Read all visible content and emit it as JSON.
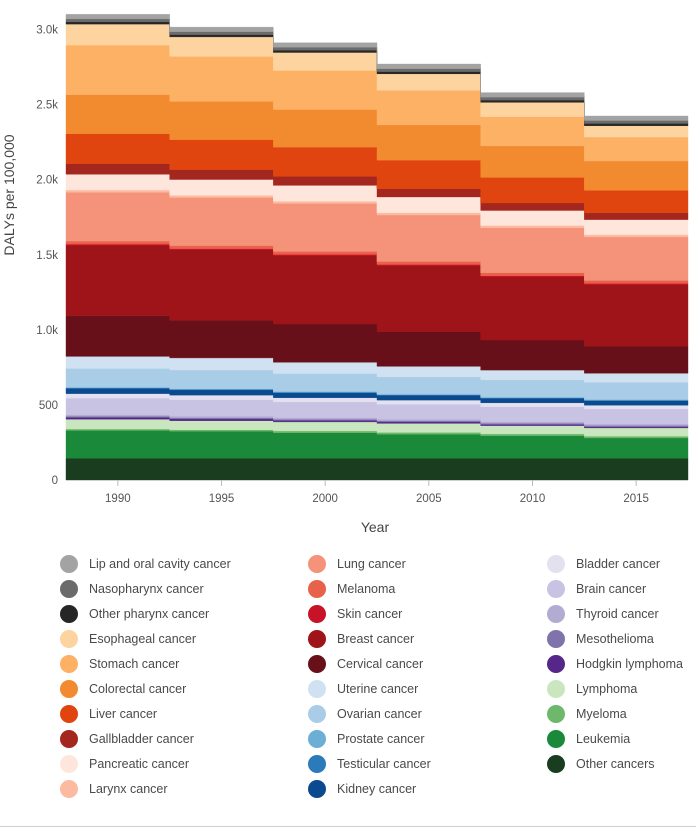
{
  "chart_data": {
    "type": "area",
    "xlabel": "Year",
    "ylabel": "DALYs per 100,000",
    "ylim": [
      0,
      3150
    ],
    "y_ticks": [
      {
        "value": 0,
        "label": "0"
      },
      {
        "value": 500,
        "label": "500"
      },
      {
        "value": 1000,
        "label": "1.0k"
      },
      {
        "value": 1500,
        "label": "1.5k"
      },
      {
        "value": 2000,
        "label": "2.0k"
      },
      {
        "value": 2500,
        "label": "2.5k"
      },
      {
        "value": 3000,
        "label": "3.0k"
      }
    ],
    "categories": [
      "1990",
      "1995",
      "2000",
      "2005",
      "2010",
      "2015"
    ],
    "grid": false,
    "legend_position": "bottom",
    "series": [
      {
        "name": "Other cancers",
        "color": "#1a3d1f",
        "values": [
          145,
          145,
          145,
          145,
          145,
          145
        ]
      },
      {
        "name": "Leukemia",
        "color": "#1a8a3a",
        "values": [
          185,
          180,
          170,
          160,
          150,
          135
        ]
      },
      {
        "name": "Myeloma",
        "color": "#6db86a",
        "values": [
          10,
          10,
          12,
          12,
          12,
          12
        ]
      },
      {
        "name": "Lymphoma",
        "color": "#c9e6bf",
        "values": [
          65,
          60,
          60,
          60,
          55,
          55
        ]
      },
      {
        "name": "Hodgkin lymphoma",
        "color": "#542788",
        "values": [
          12,
          12,
          10,
          10,
          8,
          8
        ]
      },
      {
        "name": "Mesothelioma",
        "color": "#8073ac",
        "values": [
          8,
          8,
          8,
          8,
          8,
          8
        ]
      },
      {
        "name": "Thyroid cancer",
        "color": "#b2abd2",
        "values": [
          10,
          10,
          10,
          10,
          10,
          10
        ]
      },
      {
        "name": "Brain cancer",
        "color": "#c9c3e3",
        "values": [
          110,
          110,
          105,
          100,
          100,
          100
        ]
      },
      {
        "name": "Bladder cancer",
        "color": "#e3e1f0",
        "values": [
          30,
          30,
          28,
          27,
          26,
          25
        ]
      },
      {
        "name": "Kidney cancer",
        "color": "#0b4a8f",
        "values": [
          35,
          35,
          33,
          32,
          30,
          30
        ]
      },
      {
        "name": "Testicular cancer",
        "color": "#2b7bba",
        "values": [
          3,
          3,
          3,
          3,
          3,
          3
        ]
      },
      {
        "name": "Prostate cancer",
        "color": "#6baed6",
        "values": [
          5,
          5,
          5,
          5,
          5,
          5
        ]
      },
      {
        "name": "Ovarian cancer",
        "color": "#a9cde6",
        "values": [
          125,
          125,
          120,
          115,
          115,
          115
        ]
      },
      {
        "name": "Uterine cancer",
        "color": "#d0e1f2",
        "values": [
          80,
          80,
          75,
          70,
          65,
          60
        ]
      },
      {
        "name": "Cervical cancer",
        "color": "#67101a",
        "values": [
          270,
          250,
          255,
          230,
          200,
          180
        ]
      },
      {
        "name": "Breast cancer",
        "color": "#9e1418",
        "values": [
          470,
          470,
          455,
          440,
          420,
          410
        ]
      },
      {
        "name": "Skin cancer",
        "color": "#c81227",
        "values": [
          8,
          8,
          8,
          8,
          8,
          8
        ]
      },
      {
        "name": "Melanoma",
        "color": "#e8614a",
        "values": [
          20,
          20,
          20,
          20,
          20,
          20
        ]
      },
      {
        "name": "Lung cancer",
        "color": "#f4937a",
        "values": [
          325,
          320,
          320,
          310,
          300,
          290
        ]
      },
      {
        "name": "Larynx cancer",
        "color": "#fcbba1",
        "values": [
          15,
          15,
          15,
          15,
          15,
          15
        ]
      },
      {
        "name": "Pancreatic cancer",
        "color": "#fee6dc",
        "values": [
          105,
          105,
          105,
          105,
          100,
          100
        ]
      },
      {
        "name": "Gallbladder cancer",
        "color": "#a3271e",
        "values": [
          70,
          65,
          60,
          55,
          50,
          45
        ]
      },
      {
        "name": "Liver cancer",
        "color": "#e0450f",
        "values": [
          200,
          200,
          195,
          190,
          170,
          150
        ]
      },
      {
        "name": "Colorectal cancer",
        "color": "#f28a30",
        "values": [
          260,
          255,
          250,
          235,
          210,
          195
        ]
      },
      {
        "name": "Stomach cancer",
        "color": "#fdb164",
        "values": [
          330,
          300,
          260,
          230,
          195,
          160
        ]
      },
      {
        "name": "Esophageal cancer",
        "color": "#fdd4a0",
        "values": [
          140,
          130,
          120,
          110,
          95,
          75
        ]
      },
      {
        "name": "Other pharynx cancer",
        "color": "#262626",
        "values": [
          15,
          15,
          15,
          15,
          15,
          15
        ]
      },
      {
        "name": "Nasopharynx cancer",
        "color": "#6b6b6b",
        "values": [
          20,
          20,
          20,
          20,
          20,
          20
        ]
      },
      {
        "name": "Lip and oral cavity cancer",
        "color": "#a3a3a3",
        "values": [
          30,
          30,
          30,
          30,
          30,
          30
        ]
      }
    ]
  },
  "legend": {
    "columns": [
      [
        "Lip and oral cavity cancer",
        "Nasopharynx cancer",
        "Other pharynx cancer",
        "Esophageal cancer",
        "Stomach cancer",
        "Colorectal cancer",
        "Liver cancer",
        "Gallbladder cancer",
        "Pancreatic cancer",
        "Larynx cancer"
      ],
      [
        "Lung cancer",
        "Melanoma",
        "Skin cancer",
        "Breast cancer",
        "Cervical cancer",
        "Uterine cancer",
        "Ovarian cancer",
        "Prostate cancer",
        "Testicular cancer",
        "Kidney cancer"
      ],
      [
        "Bladder cancer",
        "Brain cancer",
        "Thyroid cancer",
        "Mesothelioma",
        "Hodgkin lymphoma",
        "Lymphoma",
        "Myeloma",
        "Leukemia",
        "Other cancers"
      ]
    ]
  }
}
